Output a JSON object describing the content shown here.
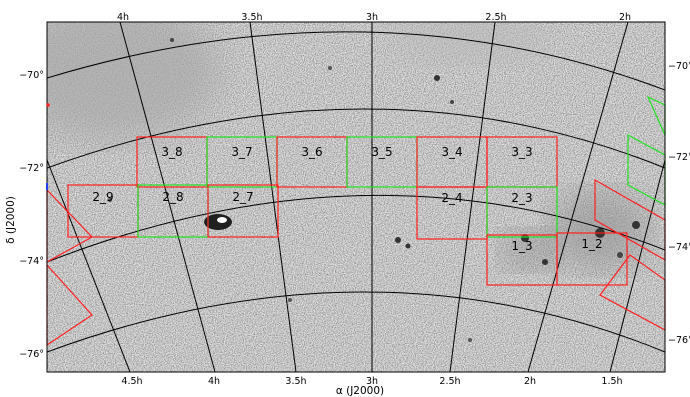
{
  "figure": {
    "top_ra_labels": [
      "4h",
      "3.5h",
      "3h",
      "2.5h",
      "2h"
    ],
    "bottom_ra_labels": [
      "4.5h",
      "4h",
      "3.5h",
      "3h",
      "2.5h",
      "2h",
      "1.5h"
    ],
    "left_dec_labels": [
      "−70°",
      "−72°",
      "−74°",
      "−76°"
    ],
    "right_dec_labels": [
      "−70°",
      "−72°",
      "−74°",
      "−76°"
    ],
    "xlabel": "α (J2000)",
    "ylabel": "δ (J2000)",
    "fields": [
      {
        "label": "3_8",
        "color": "red"
      },
      {
        "label": "3_7",
        "color": "green"
      },
      {
        "label": "3_6",
        "color": "red"
      },
      {
        "label": "3_5",
        "color": "green"
      },
      {
        "label": "3_4",
        "color": "red"
      },
      {
        "label": "3_3",
        "color": "red"
      },
      {
        "label": "2_9",
        "color": "red"
      },
      {
        "label": "2_8",
        "color": "green"
      },
      {
        "label": "2_7",
        "color": "red"
      },
      {
        "label": "2_4",
        "color": "red"
      },
      {
        "label": "2_3",
        "color": "green"
      },
      {
        "label": "1_3",
        "color": "red"
      },
      {
        "label": "1_2",
        "color": "red"
      }
    ],
    "colors": {
      "red": "#ff2020",
      "green": "#22e022",
      "grid": "#000000"
    }
  }
}
